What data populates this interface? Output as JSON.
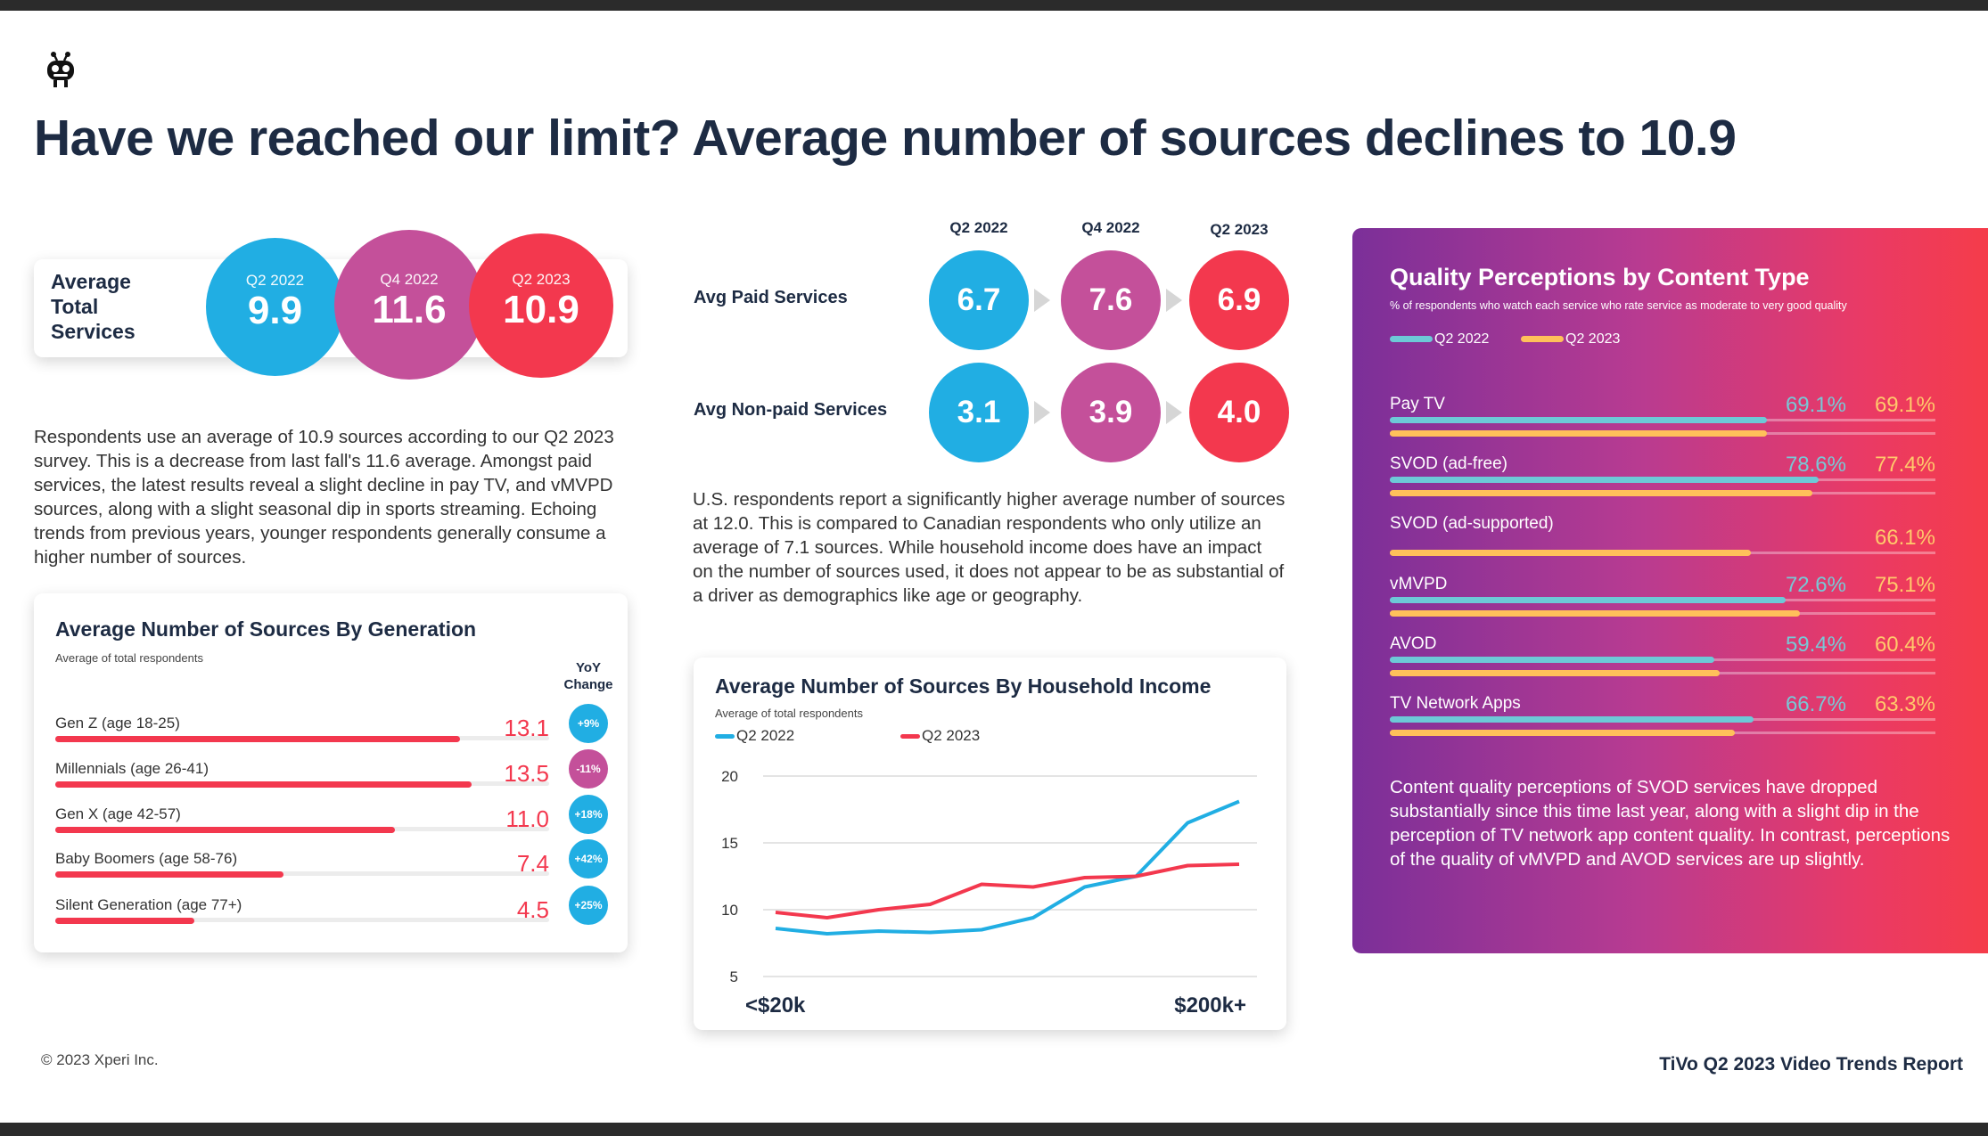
{
  "title": "Have we reached our limit? Average number of sources declines to 10.9",
  "avg_total": {
    "label_lines": [
      "Average",
      "Total",
      "Services"
    ],
    "bubbles": [
      {
        "period": "Q2 2022",
        "value": "9.9"
      },
      {
        "period": "Q4 2022",
        "value": "11.6"
      },
      {
        "period": "Q2 2023",
        "value": "10.9"
      }
    ]
  },
  "intro_paragraph": "Respondents use an average of 10.9 sources according to our Q2 2023 survey. This is a decrease from last fall's 11.6 average. Amongst paid services, the latest results reveal a slight decline in pay TV, and vMVPD sources, along with a slight seasonal dip in sports streaming. Echoing trends from previous years, younger respondents generally consume a higher number of sources.",
  "paid_nonpaid": {
    "headers": [
      "Q2 2022",
      "Q4 2022",
      "Q2 2023"
    ],
    "rows": [
      {
        "label": "Avg Paid Services",
        "values": [
          "6.7",
          "7.6",
          "6.9"
        ]
      },
      {
        "label": "Avg Non-paid Services",
        "values": [
          "3.1",
          "3.9",
          "4.0"
        ]
      }
    ]
  },
  "us_paragraph": "U.S. respondents report a significantly higher average number of sources at 12.0. This is compared to Canadian respondents who only utilize an average of 7.1 sources. While household income does have an impact on the number of sources used, it does not appear to be as substantial of a driver as demographics like age or geography.",
  "quality": {
    "title": "Quality Perceptions by Content Type",
    "subtitle": "% of respondents who watch each service who rate service as moderate to very good quality",
    "legend": [
      "Q2 2022",
      "Q2 2023"
    ],
    "colors": {
      "q2_2022": "#6dc9d7",
      "q2_2023": "#ffc05a"
    },
    "paragraph": "Content quality perceptions of SVOD services have dropped substantially since this time last year, along with a slight dip in the perception of TV network app content quality. In contrast, perceptions of the quality of vMVPD and AVOD services are up slightly."
  },
  "footer": {
    "copyright": "© 2023 Xperi Inc.",
    "report": "TiVo Q2 2023 Video Trends Report"
  },
  "chart_data": [
    {
      "type": "bar",
      "title": "Average Number of Sources By Generation",
      "subtitle": "Average of total respondents",
      "change_header": "YoY Change",
      "categories": [
        "Gen Z (age 18-25)",
        "Millennials (age 26-41)",
        "Gen X (age 42-57)",
        "Baby Boomers (age 58-76)",
        "Silent Generation (age 77+)"
      ],
      "values": [
        13.1,
        13.5,
        11.0,
        7.4,
        4.5
      ],
      "value_labels": [
        "13.1",
        "13.5",
        "11.0",
        "7.4",
        "4.5"
      ],
      "yoy_change": [
        "+9%",
        "-11%",
        "+18%",
        "+42%",
        "+25%"
      ],
      "xlim": [
        0,
        16
      ]
    },
    {
      "type": "line",
      "title": "Average Number of Sources By Household Income",
      "subtitle": "Average of total respondents",
      "x_tick_labels": [
        "<$20k",
        "$200k+"
      ],
      "yticks": [
        5,
        10,
        15,
        20
      ],
      "ylim": [
        5,
        20
      ],
      "series": [
        {
          "name": "Q2 2022",
          "color": "#21aee3",
          "values": [
            8.6,
            8.2,
            8.4,
            8.3,
            8.5,
            9.4,
            11.7,
            12.5,
            16.5,
            18.1
          ]
        },
        {
          "name": "Q2 2023",
          "color": "#f3384e",
          "values": [
            9.8,
            9.4,
            10.0,
            10.4,
            11.9,
            11.7,
            12.4,
            12.5,
            13.3,
            13.4
          ]
        }
      ]
    },
    {
      "type": "bar",
      "title": "Quality Perceptions by Content Type",
      "categories": [
        "Pay TV",
        "SVOD (ad-free)",
        "SVOD (ad-supported)",
        "vMVPD",
        "AVOD",
        "TV Network Apps"
      ],
      "xlim": [
        0,
        100
      ],
      "series": [
        {
          "name": "Q2 2022",
          "values": [
            69.1,
            78.6,
            null,
            72.6,
            59.4,
            66.7
          ],
          "labels": [
            "69.1%",
            "78.6%",
            "",
            "72.6%",
            "59.4%",
            "66.7%"
          ]
        },
        {
          "name": "Q2 2023",
          "values": [
            69.1,
            77.4,
            66.1,
            75.1,
            60.4,
            63.3
          ],
          "labels": [
            "69.1%",
            "77.4%",
            "66.1%",
            "75.1%",
            "60.4%",
            "63.3%"
          ]
        }
      ]
    }
  ]
}
